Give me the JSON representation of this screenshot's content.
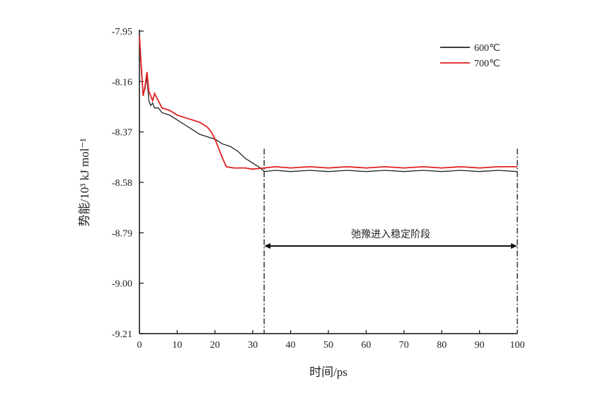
{
  "chart_data": {
    "type": "line",
    "title": "",
    "xlabel": "时间/ps",
    "ylabel": "势能/10³ kJ mol⁻¹",
    "xlim": [
      0,
      100
    ],
    "ylim": [
      -9.21,
      -7.95
    ],
    "xticks": [
      0,
      10,
      20,
      30,
      40,
      50,
      60,
      70,
      80,
      90,
      100
    ],
    "yticks": [
      -7.95,
      -8.16,
      -8.37,
      -8.58,
      -8.79,
      -9.0,
      -9.21
    ],
    "ytick_labels": [
      "-7.95",
      "-8.16",
      "-8.37",
      "-8.58",
      "-8.79",
      "-9.00",
      "-9.21"
    ],
    "grid": false,
    "legend_placement": "top-right",
    "series": [
      {
        "name": "600℃",
        "color": "#222222",
        "x": [
          0,
          0.5,
          1,
          1.5,
          2,
          2.5,
          3,
          3.5,
          4,
          5,
          6,
          8,
          10,
          12,
          14,
          16,
          18,
          20,
          22,
          24,
          26,
          28,
          30,
          32,
          33,
          36,
          40,
          45,
          50,
          55,
          60,
          65,
          70,
          75,
          80,
          85,
          90,
          95,
          100
        ],
        "y": [
          -7.96,
          -8.12,
          -8.21,
          -8.19,
          -8.14,
          -8.24,
          -8.26,
          -8.25,
          -8.27,
          -8.27,
          -8.29,
          -8.3,
          -8.32,
          -8.34,
          -8.36,
          -8.38,
          -8.39,
          -8.4,
          -8.42,
          -8.43,
          -8.45,
          -8.48,
          -8.5,
          -8.52,
          -8.535,
          -8.53,
          -8.535,
          -8.53,
          -8.535,
          -8.53,
          -8.535,
          -8.53,
          -8.535,
          -8.53,
          -8.535,
          -8.53,
          -8.535,
          -8.53,
          -8.535
        ]
      },
      {
        "name": "700℃",
        "color": "#e02020",
        "x": [
          0,
          0.5,
          1,
          1.5,
          2,
          2.5,
          3,
          3.5,
          4,
          5,
          6,
          8,
          10,
          12,
          14,
          16,
          18,
          19,
          20,
          21,
          22,
          23,
          25,
          28,
          30,
          33,
          36,
          40,
          45,
          50,
          55,
          60,
          65,
          70,
          75,
          80,
          85,
          90,
          95,
          100
        ],
        "y": [
          -7.97,
          -8.1,
          -8.22,
          -8.18,
          -8.12,
          -8.2,
          -8.22,
          -8.24,
          -8.21,
          -8.24,
          -8.27,
          -8.28,
          -8.3,
          -8.31,
          -8.32,
          -8.33,
          -8.35,
          -8.37,
          -8.4,
          -8.44,
          -8.48,
          -8.515,
          -8.52,
          -8.52,
          -8.525,
          -8.52,
          -8.515,
          -8.52,
          -8.515,
          -8.52,
          -8.515,
          -8.52,
          -8.515,
          -8.52,
          -8.515,
          -8.52,
          -8.515,
          -8.52,
          -8.515,
          -8.515
        ]
      }
    ],
    "annotations": [
      {
        "text": "弛豫进入稳定阶段",
        "type": "double-arrow",
        "x_from": 33,
        "x_to": 100,
        "y": -8.845,
        "guide_top": -8.44
      }
    ]
  }
}
